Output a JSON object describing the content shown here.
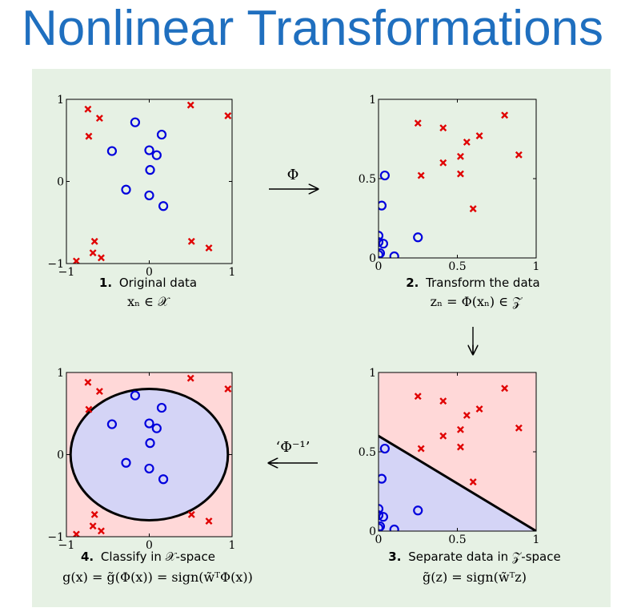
{
  "title": "Nonlinear Transformations",
  "colors": {
    "title": "#1f6fbf",
    "panel_bg": "#e6f1e4",
    "plot_bg": "#e6f1e4",
    "cross": "#e00000",
    "circle": "#0000dd",
    "red_region": "#ffd8d8",
    "blue_region": "#d4d4f6",
    "line": "#000000"
  },
  "arrows": {
    "phi": "Φ",
    "phi_inverse": "‘Φ⁻¹’"
  },
  "panels": [
    {
      "id": "original",
      "caption_num": "1.",
      "caption_text": "Original data",
      "formula": "xₙ ∈ 𝒳",
      "xticks": [
        "−1",
        "0",
        "1"
      ],
      "yticks": [
        "1",
        "0",
        "−1"
      ]
    },
    {
      "id": "transformed",
      "caption_num": "2.",
      "caption_text": "Transform the data",
      "formula": "zₙ = Φ(xₙ) ∈ 𝒵",
      "xticks": [
        "0",
        "0.5",
        "1"
      ],
      "yticks": [
        "1",
        "0.5",
        "0"
      ]
    },
    {
      "id": "separate",
      "caption_num": "3.",
      "caption_text": "Separate data in 𝒵-space",
      "formula": "g̃(z) = sign(w̃ᵀz)",
      "xticks": [
        "0",
        "0.5",
        "1"
      ],
      "yticks": [
        "1",
        "0.5",
        "0"
      ]
    },
    {
      "id": "classify",
      "caption_num": "4.",
      "caption_text": "Classify in 𝒳-space",
      "formula": "g(x) = g̃(Φ(x)) = sign(w̃ᵀΦ(x))",
      "xticks": [
        "−1",
        "0",
        "1"
      ],
      "yticks": [
        "1",
        "0",
        "−1"
      ]
    }
  ],
  "chart_data": [
    {
      "type": "scatter",
      "panel": "original",
      "xlim": [
        -1,
        1
      ],
      "ylim": [
        -1,
        1
      ],
      "series": [
        {
          "marker": "x",
          "color": "#e00000",
          "points": [
            [
              -0.74,
              0.88
            ],
            [
              -0.6,
              0.77
            ],
            [
              -0.73,
              0.55
            ],
            [
              0.5,
              0.93
            ],
            [
              0.95,
              0.8
            ],
            [
              -0.66,
              -0.73
            ],
            [
              -0.68,
              -0.87
            ],
            [
              -0.58,
              -0.93
            ],
            [
              -0.88,
              -0.97
            ],
            [
              0.51,
              -0.73
            ],
            [
              0.72,
              -0.81
            ]
          ]
        },
        {
          "marker": "o",
          "color": "#0000dd",
          "points": [
            [
              -0.17,
              0.72
            ],
            [
              0.15,
              0.57
            ],
            [
              -0.45,
              0.37
            ],
            [
              0.0,
              0.38
            ],
            [
              0.09,
              0.32
            ],
            [
              0.01,
              0.14
            ],
            [
              -0.28,
              -0.1
            ],
            [
              0.0,
              -0.17
            ],
            [
              0.17,
              -0.3
            ]
          ]
        }
      ]
    },
    {
      "type": "scatter",
      "panel": "transformed",
      "xlim": [
        0,
        1
      ],
      "ylim": [
        0,
        1
      ],
      "series": [
        {
          "marker": "x",
          "color": "#e00000",
          "points": [
            [
              0.25,
              0.85
            ],
            [
              0.41,
              0.82
            ],
            [
              0.56,
              0.73
            ],
            [
              0.64,
              0.77
            ],
            [
              0.8,
              0.9
            ],
            [
              0.52,
              0.64
            ],
            [
              0.41,
              0.6
            ],
            [
              0.89,
              0.65
            ],
            [
              0.27,
              0.52
            ],
            [
              0.52,
              0.53
            ],
            [
              0.6,
              0.31
            ]
          ]
        },
        {
          "marker": "o",
          "color": "#0000dd",
          "points": [
            [
              0.04,
              0.52
            ],
            [
              0.02,
              0.33
            ],
            [
              0.0,
              0.14
            ],
            [
              0.0,
              0.1
            ],
            [
              0.03,
              0.09
            ],
            [
              0.0,
              0.02
            ],
            [
              0.01,
              0.03
            ],
            [
              0.25,
              0.13
            ],
            [
              0.1,
              0.01
            ]
          ]
        }
      ]
    },
    {
      "type": "scatter",
      "panel": "separate",
      "xlim": [
        0,
        1
      ],
      "ylim": [
        0,
        1
      ],
      "boundary_line": [
        [
          -0.05,
          0.63
        ],
        [
          1.0,
          0.0
        ]
      ],
      "series": [
        {
          "marker": "x",
          "color": "#e00000",
          "points": [
            [
              0.25,
              0.85
            ],
            [
              0.41,
              0.82
            ],
            [
              0.56,
              0.73
            ],
            [
              0.64,
              0.77
            ],
            [
              0.8,
              0.9
            ],
            [
              0.52,
              0.64
            ],
            [
              0.41,
              0.6
            ],
            [
              0.89,
              0.65
            ],
            [
              0.27,
              0.52
            ],
            [
              0.52,
              0.53
            ],
            [
              0.6,
              0.31
            ]
          ]
        },
        {
          "marker": "o",
          "color": "#0000dd",
          "points": [
            [
              0.04,
              0.52
            ],
            [
              0.02,
              0.33
            ],
            [
              0.0,
              0.14
            ],
            [
              0.0,
              0.1
            ],
            [
              0.03,
              0.09
            ],
            [
              0.0,
              0.02
            ],
            [
              0.01,
              0.03
            ],
            [
              0.25,
              0.13
            ],
            [
              0.1,
              0.01
            ]
          ]
        }
      ]
    },
    {
      "type": "scatter",
      "panel": "classify",
      "xlim": [
        -1,
        1
      ],
      "ylim": [
        -1,
        1
      ],
      "boundary_ellipse": {
        "cx": 0.0,
        "cy": 0.0,
        "rx": 0.95,
        "ry": 0.8
      },
      "series": [
        {
          "marker": "x",
          "color": "#e00000",
          "points": [
            [
              -0.74,
              0.88
            ],
            [
              -0.6,
              0.77
            ],
            [
              -0.73,
              0.55
            ],
            [
              0.5,
              0.93
            ],
            [
              0.95,
              0.8
            ],
            [
              -0.66,
              -0.73
            ],
            [
              -0.68,
              -0.87
            ],
            [
              -0.58,
              -0.93
            ],
            [
              -0.88,
              -0.97
            ],
            [
              0.51,
              -0.73
            ],
            [
              0.72,
              -0.81
            ]
          ]
        },
        {
          "marker": "o",
          "color": "#0000dd",
          "points": [
            [
              -0.17,
              0.72
            ],
            [
              0.15,
              0.57
            ],
            [
              -0.45,
              0.37
            ],
            [
              0.0,
              0.38
            ],
            [
              0.09,
              0.32
            ],
            [
              0.01,
              0.14
            ],
            [
              -0.28,
              -0.1
            ],
            [
              0.0,
              -0.17
            ],
            [
              0.17,
              -0.3
            ]
          ]
        }
      ]
    }
  ]
}
